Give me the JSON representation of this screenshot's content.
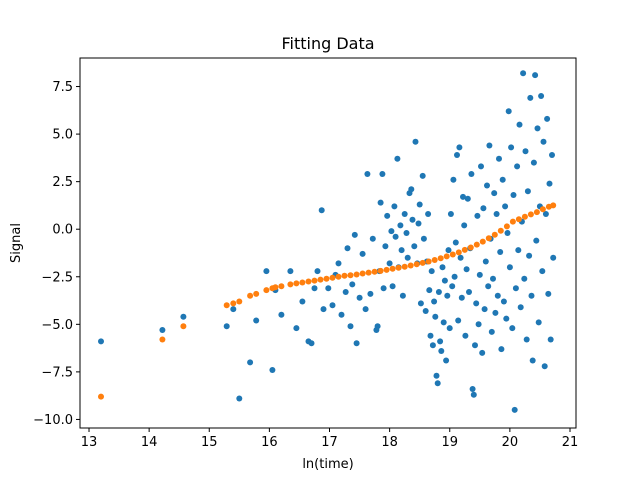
{
  "chart_data": {
    "type": "scatter",
    "title": "Fitting Data",
    "xlabel": "ln(time)",
    "ylabel": "Signal",
    "xlim": [
      12.85,
      21.1
    ],
    "ylim": [
      -10.45,
      9.0
    ],
    "xticks": [
      13,
      14,
      15,
      16,
      17,
      18,
      19,
      20,
      21
    ],
    "yticks": [
      -10.0,
      -7.5,
      -5.0,
      -2.5,
      0.0,
      2.5,
      5.0,
      7.5
    ],
    "ytick_labels": [
      "−10.0",
      "−7.5",
      "−5.0",
      "−2.5",
      "0.0",
      "2.5",
      "5.0",
      "7.5"
    ],
    "grid": false,
    "series": [
      {
        "color": "#1f77b4",
        "points": [
          [
            13.2,
            -5.9
          ],
          [
            14.22,
            -5.3
          ],
          [
            14.57,
            -4.6
          ],
          [
            15.29,
            -5.1
          ],
          [
            15.4,
            -4.2
          ],
          [
            15.5,
            -8.9
          ],
          [
            15.68,
            -7.0
          ],
          [
            15.78,
            -4.8
          ],
          [
            15.95,
            -2.2
          ],
          [
            16.05,
            -7.4
          ],
          [
            16.1,
            -3.2
          ],
          [
            16.2,
            -4.5
          ],
          [
            16.35,
            -2.2
          ],
          [
            16.45,
            -5.2
          ],
          [
            16.55,
            -3.8
          ],
          [
            16.65,
            -5.9
          ],
          [
            16.7,
            -6.0
          ],
          [
            16.75,
            -3.1
          ],
          [
            16.8,
            -2.2
          ],
          [
            16.87,
            1.0
          ],
          [
            16.9,
            -4.2
          ],
          [
            16.98,
            -3.1
          ],
          [
            17.05,
            -4.0
          ],
          [
            17.1,
            -2.4
          ],
          [
            17.15,
            -1.8
          ],
          [
            17.2,
            -4.5
          ],
          [
            17.27,
            -3.3
          ],
          [
            17.3,
            -1.0
          ],
          [
            17.35,
            -5.1
          ],
          [
            17.38,
            -2.9
          ],
          [
            17.42,
            -0.3
          ],
          [
            17.45,
            -6.0
          ],
          [
            17.5,
            -3.6
          ],
          [
            17.55,
            -1.3
          ],
          [
            17.6,
            -4.2
          ],
          [
            17.63,
            2.9
          ],
          [
            17.68,
            -3.4
          ],
          [
            17.72,
            -0.5
          ],
          [
            17.78,
            -5.3
          ],
          [
            17.8,
            -5.1
          ],
          [
            17.83,
            -2.2
          ],
          [
            17.85,
            1.4
          ],
          [
            17.88,
            2.9
          ],
          [
            17.9,
            -3.1
          ],
          [
            17.93,
            -0.9
          ],
          [
            17.96,
            0.7
          ],
          [
            18.0,
            -1.8
          ],
          [
            18.03,
            -0.1
          ],
          [
            18.05,
            -3.0
          ],
          [
            18.08,
            1.2
          ],
          [
            18.1,
            -0.4
          ],
          [
            18.13,
            3.7
          ],
          [
            18.15,
            -2.0
          ],
          [
            18.18,
            0.2
          ],
          [
            18.2,
            -1.1
          ],
          [
            18.22,
            -3.5
          ],
          [
            18.25,
            0.8
          ],
          [
            18.28,
            -0.2
          ],
          [
            18.3,
            -1.5
          ],
          [
            18.33,
            1.9
          ],
          [
            18.36,
            2.1
          ],
          [
            18.38,
            0.5
          ],
          [
            18.41,
            -0.9
          ],
          [
            18.43,
            4.6
          ],
          [
            18.46,
            -1.8
          ],
          [
            18.48,
            0.3
          ],
          [
            18.5,
            1.3
          ],
          [
            18.52,
            -3.9
          ],
          [
            18.55,
            2.8
          ],
          [
            18.57,
            -0.5
          ],
          [
            18.6,
            -4.3
          ],
          [
            18.62,
            -1.7
          ],
          [
            18.64,
            0.8
          ],
          [
            18.66,
            -3.2
          ],
          [
            18.68,
            -5.6
          ],
          [
            18.7,
            -2.2
          ],
          [
            18.72,
            -6.1
          ],
          [
            18.74,
            -3.8
          ],
          [
            18.76,
            -4.6
          ],
          [
            18.78,
            -7.7
          ],
          [
            18.8,
            -8.1
          ],
          [
            18.82,
            -3.3
          ],
          [
            18.84,
            -5.9
          ],
          [
            18.86,
            -6.4
          ],
          [
            18.88,
            -2.0
          ],
          [
            18.9,
            -4.9
          ],
          [
            18.92,
            -2.7
          ],
          [
            18.94,
            -6.9
          ],
          [
            18.96,
            -3.5
          ],
          [
            18.98,
            -1.1
          ],
          [
            19.0,
            -5.2
          ],
          [
            19.02,
            0.8
          ],
          [
            19.04,
            -3.0
          ],
          [
            19.06,
            2.6
          ],
          [
            19.08,
            -2.5
          ],
          [
            19.1,
            -0.7
          ],
          [
            19.12,
            3.9
          ],
          [
            19.14,
            -4.8
          ],
          [
            19.16,
            4.3
          ],
          [
            19.18,
            -1.5
          ],
          [
            19.2,
            -3.6
          ],
          [
            19.22,
            1.7
          ],
          [
            19.24,
            0.2
          ],
          [
            19.26,
            -5.6
          ],
          [
            19.28,
            -2.1
          ],
          [
            19.3,
            1.6
          ],
          [
            19.32,
            -3.3
          ],
          [
            19.34,
            -1.0
          ],
          [
            19.36,
            2.9
          ],
          [
            19.38,
            -8.4
          ],
          [
            19.4,
            -8.7
          ],
          [
            19.42,
            -6.1
          ],
          [
            19.44,
            -3.9
          ],
          [
            19.46,
            0.7
          ],
          [
            19.48,
            -5.0
          ],
          [
            19.5,
            -2.4
          ],
          [
            19.52,
            3.3
          ],
          [
            19.54,
            -6.5
          ],
          [
            19.56,
            1.1
          ],
          [
            19.58,
            -4.2
          ],
          [
            19.6,
            -1.7
          ],
          [
            19.62,
            2.3
          ],
          [
            19.64,
            -3.0
          ],
          [
            19.66,
            4.4
          ],
          [
            19.68,
            -0.5
          ],
          [
            19.7,
            -5.4
          ],
          [
            19.72,
            -2.6
          ],
          [
            19.74,
            1.9
          ],
          [
            19.76,
            -4.4
          ],
          [
            19.78,
            0.8
          ],
          [
            19.8,
            -3.5
          ],
          [
            19.82,
            3.7
          ],
          [
            19.84,
            -1.2
          ],
          [
            19.86,
            -6.3
          ],
          [
            19.88,
            2.6
          ],
          [
            19.9,
            -3.8
          ],
          [
            19.92,
            1.2
          ],
          [
            19.94,
            -4.7
          ],
          [
            19.96,
            -0.2
          ],
          [
            19.98,
            6.2
          ],
          [
            20.0,
            -2.0
          ],
          [
            20.02,
            4.3
          ],
          [
            20.04,
            -5.2
          ],
          [
            20.06,
            1.8
          ],
          [
            20.08,
            -9.5
          ],
          [
            20.1,
            -3.1
          ],
          [
            20.12,
            3.3
          ],
          [
            20.14,
            -1.1
          ],
          [
            20.16,
            5.5
          ],
          [
            20.18,
            -4.1
          ],
          [
            20.2,
            0.4
          ],
          [
            20.22,
            8.2
          ],
          [
            20.24,
            -2.6
          ],
          [
            20.26,
            4.1
          ],
          [
            20.28,
            -5.8
          ],
          [
            20.3,
            2.0
          ],
          [
            20.32,
            -1.4
          ],
          [
            20.34,
            6.9
          ],
          [
            20.36,
            -3.5
          ],
          [
            20.38,
            -6.9
          ],
          [
            20.4,
            3.5
          ],
          [
            20.42,
            8.1
          ],
          [
            20.44,
            -0.6
          ],
          [
            20.46,
            5.3
          ],
          [
            20.48,
            -4.9
          ],
          [
            20.5,
            1.2
          ],
          [
            20.52,
            7.0
          ],
          [
            20.54,
            -2.2
          ],
          [
            20.56,
            4.6
          ],
          [
            20.58,
            -7.2
          ],
          [
            20.6,
            0.8
          ],
          [
            20.62,
            5.8
          ],
          [
            20.64,
            -3.4
          ],
          [
            20.66,
            2.4
          ],
          [
            20.68,
            -5.8
          ],
          [
            20.7,
            3.9
          ],
          [
            20.72,
            -1.5
          ]
        ]
      },
      {
        "color": "#ff7f0e",
        "points": [
          [
            13.2,
            -8.8
          ],
          [
            14.22,
            -5.8
          ],
          [
            14.57,
            -5.1
          ],
          [
            15.29,
            -4.0
          ],
          [
            15.4,
            -3.9
          ],
          [
            15.5,
            -3.8
          ],
          [
            15.68,
            -3.5
          ],
          [
            15.78,
            -3.4
          ],
          [
            15.95,
            -3.2
          ],
          [
            16.05,
            -3.1
          ],
          [
            16.1,
            -3.05
          ],
          [
            16.2,
            -3.0
          ],
          [
            16.35,
            -2.9
          ],
          [
            16.45,
            -2.85
          ],
          [
            16.55,
            -2.8
          ],
          [
            16.65,
            -2.75
          ],
          [
            16.75,
            -2.7
          ],
          [
            16.85,
            -2.65
          ],
          [
            16.95,
            -2.6
          ],
          [
            17.05,
            -2.55
          ],
          [
            17.15,
            -2.5
          ],
          [
            17.25,
            -2.45
          ],
          [
            17.35,
            -2.42
          ],
          [
            17.45,
            -2.38
          ],
          [
            17.55,
            -2.33
          ],
          [
            17.65,
            -2.28
          ],
          [
            17.75,
            -2.24
          ],
          [
            17.85,
            -2.19
          ],
          [
            17.95,
            -2.14
          ],
          [
            18.05,
            -2.08
          ],
          [
            18.15,
            -2.03
          ],
          [
            18.25,
            -1.97
          ],
          [
            18.35,
            -1.91
          ],
          [
            18.45,
            -1.84
          ],
          [
            18.55,
            -1.77
          ],
          [
            18.65,
            -1.7
          ],
          [
            18.75,
            -1.62
          ],
          [
            18.85,
            -1.53
          ],
          [
            18.95,
            -1.43
          ],
          [
            19.05,
            -1.33
          ],
          [
            19.15,
            -1.22
          ],
          [
            19.25,
            -1.09
          ],
          [
            19.35,
            -0.96
          ],
          [
            19.45,
            -0.81
          ],
          [
            19.55,
            -0.65
          ],
          [
            19.65,
            -0.48
          ],
          [
            19.75,
            -0.29
          ],
          [
            19.85,
            -0.08
          ],
          [
            19.95,
            0.15
          ],
          [
            20.05,
            0.4
          ],
          [
            20.15,
            0.52
          ],
          [
            20.25,
            0.65
          ],
          [
            20.35,
            0.78
          ],
          [
            20.45,
            0.9
          ],
          [
            20.55,
            1.05
          ],
          [
            20.65,
            1.18
          ],
          [
            20.72,
            1.25
          ]
        ]
      }
    ]
  }
}
